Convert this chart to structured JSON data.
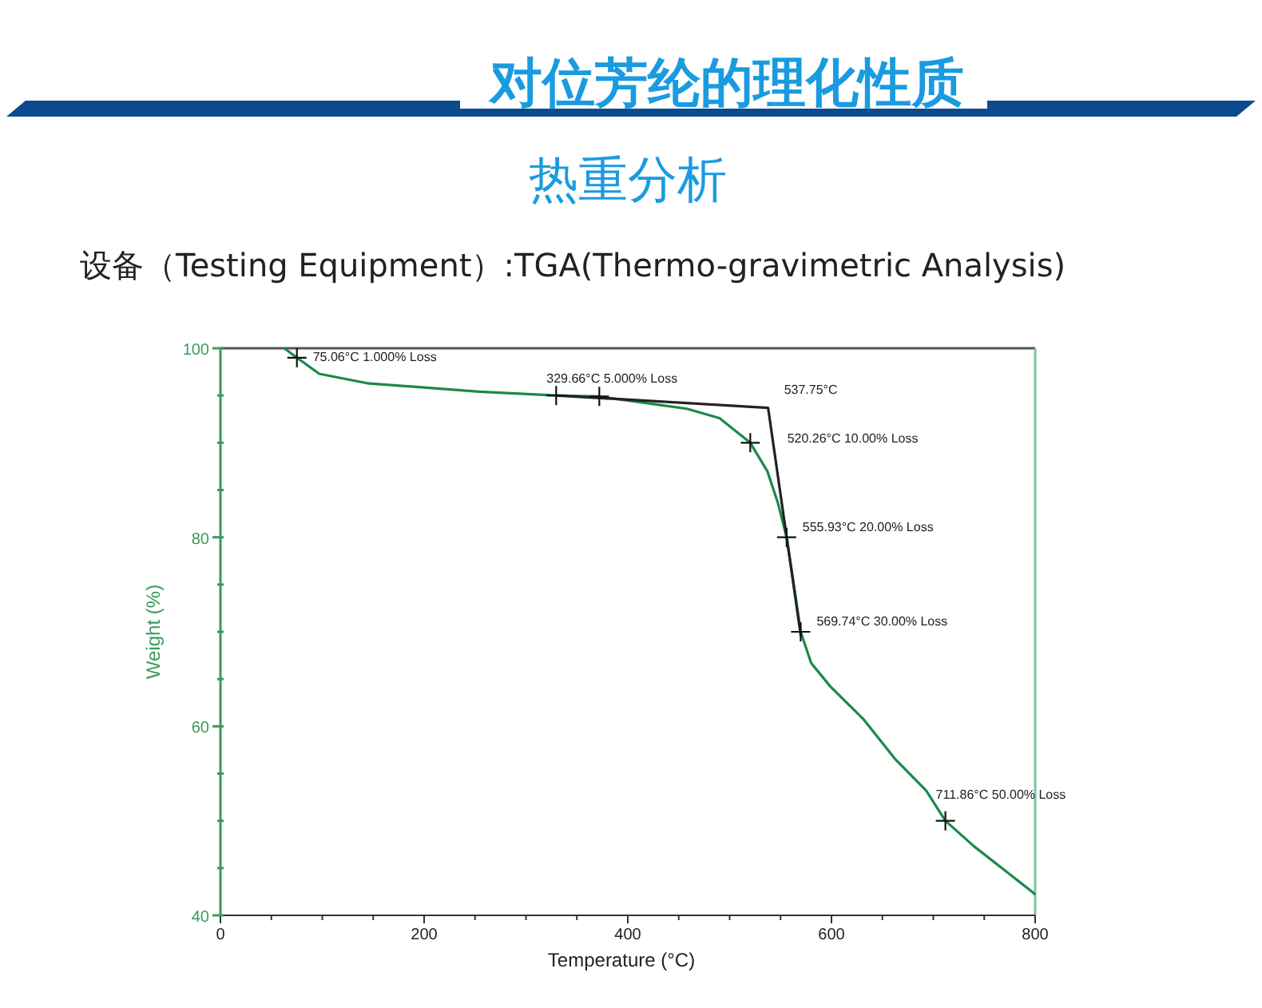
{
  "chart_data": {
    "type": "line",
    "title": "对位芳纶的理化性质",
    "subtitle": "热重分析",
    "xlabel": "Temperature (°C)",
    "ylabel": "Weight (%)",
    "annotations": [
      "设备（Testing Equipment）:TGA(Thermo-gravimetric Analysis)",
      {
        "text": "75.06°C 1.000% Loss",
        "x": 75.06,
        "y": 99
      },
      {
        "text": "329.66°C 5.000% Loss",
        "x": 329.66,
        "y": 95
      },
      {
        "text": "537.75°C",
        "x": 537.75,
        "y": 93.7
      },
      {
        "text": "520.26°C 10.00% Loss",
        "x": 520.26,
        "y": 90
      },
      {
        "text": "555.93°C 20.00% Loss",
        "x": 555.93,
        "y": 80
      },
      {
        "text": "569.74°C 30.00% Loss",
        "x": 569.74,
        "y": 70
      },
      {
        "text": "711.86°C 50.00% Loss",
        "x": 711.86,
        "y": 50
      }
    ],
    "series": [
      {
        "color": "#1a8a4a",
        "x": [
          62.7,
          75.06,
          97,
          144,
          254,
          329.66,
          372,
          411,
          458,
          490,
          520.26,
          537,
          547.5,
          555.93,
          564,
          569.74,
          580,
          599,
          631,
          662,
          693,
          711.86,
          740,
          772,
          797,
          800
        ],
        "values": [
          100,
          99,
          97.3,
          96.3,
          95.4,
          95,
          94.9,
          94.3,
          93.6,
          92.6,
          90,
          87,
          83.6,
          80,
          74.3,
          70,
          66.7,
          64.2,
          60.8,
          56.6,
          53.2,
          50,
          47.3,
          44.6,
          42.5,
          42.2
        ]
      },
      {
        "color": "#222222",
        "x": [
          329.66,
          537.75,
          570
        ],
        "values": [
          95,
          93.7,
          69.5
        ]
      },
      {
        "type": "scatter",
        "color": "#111111",
        "marker": "cross",
        "x": [
          75.06,
          329.66,
          372,
          520.26,
          555.93,
          569.74,
          711.86
        ],
        "values": [
          99,
          95,
          94.9,
          90,
          80,
          70,
          50
        ]
      }
    ],
    "xlim": [
      0,
      800
    ],
    "ylim": [
      40,
      100
    ],
    "xticks": [
      0,
      {
        "value": 50,
        "label": null
      },
      {
        "value": 100,
        "label": null
      },
      {
        "value": 150,
        "label": null
      },
      200,
      {
        "value": 250,
        "label": null
      },
      {
        "value": 300,
        "label": null
      },
      {
        "value": 350,
        "label": null
      },
      400,
      {
        "value": 450,
        "label": null
      },
      {
        "value": 500,
        "label": null
      },
      {
        "value": 550,
        "label": null
      },
      600,
      {
        "value": 650,
        "label": null
      },
      {
        "value": 700,
        "label": null
      },
      {
        "value": 750,
        "label": null
      },
      800
    ],
    "yticks": [
      40,
      {
        "value": 45,
        "label": null
      },
      {
        "value": 50,
        "label": null
      },
      {
        "value": 55,
        "label": null
      },
      60,
      {
        "value": 65,
        "label": null
      },
      {
        "value": 70,
        "label": null
      },
      {
        "value": 75,
        "label": null
      },
      80,
      {
        "value": 85,
        "label": null
      },
      {
        "value": 90,
        "label": null
      },
      {
        "value": 95,
        "label": null
      },
      100
    ],
    "grid": false
  }
}
